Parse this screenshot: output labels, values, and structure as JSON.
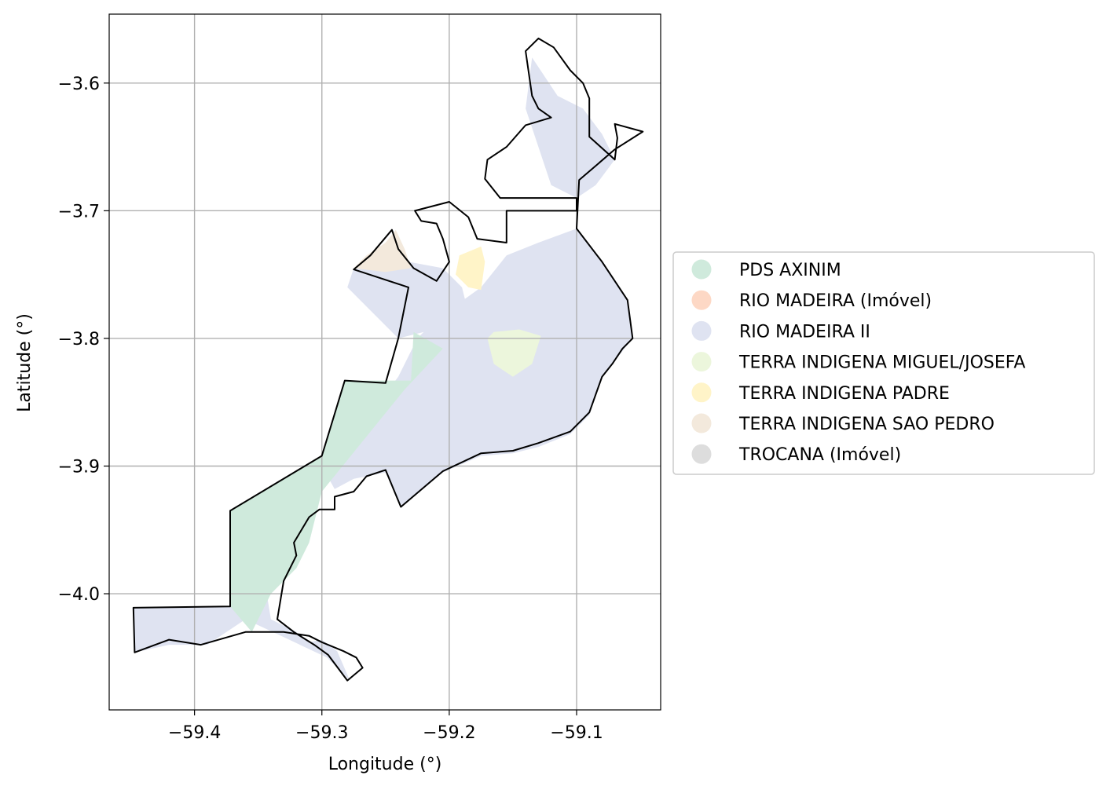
{
  "chart_data": {
    "type": "map",
    "xlabel": "Longitude (°)",
    "ylabel": "Latitude (°)",
    "xlim": [
      -59.467,
      -59.034
    ],
    "ylim": [
      -4.091,
      -3.546
    ],
    "xticks": [
      -59.4,
      -59.3,
      -59.2,
      -59.1
    ],
    "yticks": [
      -3.6,
      -3.7,
      -3.8,
      -3.9,
      -4.0
    ],
    "xtick_labels": [
      "−59.4",
      "−59.3",
      "−59.2",
      "−59.1"
    ],
    "ytick_labels": [
      "−3.6",
      "−3.7",
      "−3.8",
      "−3.9",
      "−4.0"
    ],
    "grid": true,
    "legend_position": "right",
    "legend": [
      {
        "label": "PDS AXINIM",
        "color": "#cfeadc"
      },
      {
        "label": "RIO MADEIRA (Imóvel)",
        "color": "#fdd8c5"
      },
      {
        "label": "RIO MADEIRA II",
        "color": "#dfe3f1"
      },
      {
        "label": "TERRA INDIGENA MIGUEL/JOSEFA",
        "color": "#ecf6dc"
      },
      {
        "label": "TERRA INDIGENA PADRE",
        "color": "#fff4c8"
      },
      {
        "label": "TERRA INDIGENA SAO PEDRO",
        "color": "#f3e9dc"
      },
      {
        "label": "TROCANA (Imóvel)",
        "color": "#dddddd"
      }
    ],
    "regions": [
      {
        "name": "RIO MADEIRA II",
        "color": "#dfe3f1",
        "coords": [
          [
            -59.448,
            -4.011
          ],
          [
            -59.372,
            -4.01
          ],
          [
            -59.372,
            -3.99
          ],
          [
            -59.345,
            -3.99
          ],
          [
            -59.34,
            -4.02
          ],
          [
            -59.32,
            -4.03
          ],
          [
            -59.31,
            -4.038
          ],
          [
            -59.3,
            -4.036
          ],
          [
            -59.288,
            -4.045
          ],
          [
            -59.278,
            -4.068
          ],
          [
            -59.296,
            -4.05
          ],
          [
            -59.33,
            -4.034
          ],
          [
            -59.36,
            -4.02
          ],
          [
            -59.39,
            -4.04
          ],
          [
            -59.42,
            -4.04
          ],
          [
            -59.447,
            -4.046
          ]
        ]
      },
      {
        "name": "RIO MADEIRA II",
        "color": "#dfe3f1",
        "coords": [
          [
            -59.3,
            -3.9
          ],
          [
            -59.27,
            -3.87
          ],
          [
            -59.24,
            -3.83
          ],
          [
            -59.225,
            -3.8
          ],
          [
            -59.21,
            -3.785
          ],
          [
            -59.175,
            -3.76
          ],
          [
            -59.155,
            -3.735
          ],
          [
            -59.13,
            -3.725
          ],
          [
            -59.1,
            -3.714
          ],
          [
            -59.08,
            -3.74
          ],
          [
            -59.06,
            -3.77
          ],
          [
            -59.056,
            -3.8
          ],
          [
            -59.064,
            -3.81
          ],
          [
            -59.072,
            -3.82
          ],
          [
            -59.08,
            -3.83
          ],
          [
            -59.09,
            -3.86
          ],
          [
            -59.105,
            -3.875
          ],
          [
            -59.13,
            -3.885
          ],
          [
            -59.15,
            -3.89
          ],
          [
            -59.175,
            -3.892
          ],
          [
            -59.205,
            -3.905
          ],
          [
            -59.238,
            -3.932
          ],
          [
            -59.25,
            -3.905
          ],
          [
            -59.275,
            -3.91
          ],
          [
            -59.29,
            -3.918
          ]
        ]
      },
      {
        "name": "RIO MADEIRA II",
        "color": "#dfe3f1",
        "coords": [
          [
            -59.275,
            -3.745
          ],
          [
            -59.232,
            -3.74
          ],
          [
            -59.205,
            -3.745
          ],
          [
            -59.19,
            -3.76
          ],
          [
            -59.185,
            -3.78
          ],
          [
            -59.2,
            -3.79
          ],
          [
            -59.24,
            -3.8
          ],
          [
            -59.28,
            -3.76
          ]
        ]
      },
      {
        "name": "RIO MADEIRA II",
        "color": "#dfe3f1",
        "coords": [
          [
            -59.135,
            -3.58
          ],
          [
            -59.115,
            -3.61
          ],
          [
            -59.095,
            -3.62
          ],
          [
            -59.08,
            -3.64
          ],
          [
            -59.07,
            -3.66
          ],
          [
            -59.085,
            -3.68
          ],
          [
            -59.1,
            -3.69
          ],
          [
            -59.12,
            -3.68
          ],
          [
            -59.13,
            -3.65
          ],
          [
            -59.14,
            -3.62
          ]
        ]
      },
      {
        "name": "PDS AXINIM",
        "color": "#cfeadc",
        "coords": [
          [
            -59.372,
            -3.935
          ],
          [
            -59.3,
            -3.892
          ],
          [
            -59.282,
            -3.833
          ],
          [
            -59.23,
            -3.833
          ],
          [
            -59.228,
            -3.795
          ],
          [
            -59.205,
            -3.808
          ],
          [
            -59.235,
            -3.84
          ],
          [
            -59.3,
            -3.92
          ],
          [
            -59.31,
            -3.96
          ],
          [
            -59.32,
            -3.98
          ],
          [
            -59.34,
            -4.0
          ],
          [
            -59.355,
            -4.03
          ],
          [
            -59.372,
            -4.01
          ]
        ]
      },
      {
        "name": "TERRA INDIGENA SAO PEDRO",
        "color": "#f3e9dc",
        "coords": [
          [
            -59.275,
            -3.745
          ],
          [
            -59.265,
            -3.735
          ],
          [
            -59.25,
            -3.725
          ],
          [
            -59.242,
            -3.715
          ],
          [
            -59.235,
            -3.73
          ],
          [
            -59.23,
            -3.745
          ],
          [
            -59.25,
            -3.748
          ]
        ]
      },
      {
        "name": "TERRA INDIGENA PADRE",
        "color": "#fff4c8",
        "coords": [
          [
            -59.192,
            -3.735
          ],
          [
            -59.175,
            -3.728
          ],
          [
            -59.172,
            -3.74
          ],
          [
            -59.175,
            -3.762
          ],
          [
            -59.185,
            -3.76
          ],
          [
            -59.195,
            -3.75
          ]
        ]
      },
      {
        "name": "TERRA INDIGENA MIGUEL/JOSEFA",
        "color": "#ecf6dc",
        "coords": [
          [
            -59.165,
            -3.795
          ],
          [
            -59.145,
            -3.793
          ],
          [
            -59.128,
            -3.798
          ],
          [
            -59.135,
            -3.82
          ],
          [
            -59.15,
            -3.83
          ],
          [
            -59.165,
            -3.82
          ],
          [
            -59.17,
            -3.8
          ]
        ]
      }
    ],
    "outline": [
      [
        -59.448,
        -4.011
      ],
      [
        -59.372,
        -4.01
      ],
      [
        -59.372,
        -3.935
      ],
      [
        -59.3,
        -3.892
      ],
      [
        -59.282,
        -3.833
      ],
      [
        -59.25,
        -3.835
      ],
      [
        -59.24,
        -3.8
      ],
      [
        -59.232,
        -3.76
      ],
      [
        -59.275,
        -3.746
      ],
      [
        -59.262,
        -3.735
      ],
      [
        -59.245,
        -3.715
      ],
      [
        -59.24,
        -3.73
      ],
      [
        -59.228,
        -3.745
      ],
      [
        -59.21,
        -3.755
      ],
      [
        -59.2,
        -3.74
      ],
      [
        -59.205,
        -3.722
      ],
      [
        -59.21,
        -3.71
      ],
      [
        -59.222,
        -3.708
      ],
      [
        -59.227,
        -3.7
      ],
      [
        -59.2,
        -3.693
      ],
      [
        -59.185,
        -3.705
      ],
      [
        -59.178,
        -3.722
      ],
      [
        -59.155,
        -3.725
      ],
      [
        -59.155,
        -3.7
      ],
      [
        -59.13,
        -3.7
      ],
      [
        -59.1,
        -3.7
      ],
      [
        -59.1,
        -3.69
      ],
      [
        -59.14,
        -3.69
      ],
      [
        -59.16,
        -3.69
      ],
      [
        -59.172,
        -3.675
      ],
      [
        -59.17,
        -3.66
      ],
      [
        -59.155,
        -3.65
      ],
      [
        -59.14,
        -3.633
      ],
      [
        -59.12,
        -3.627
      ],
      [
        -59.13,
        -3.62
      ],
      [
        -59.135,
        -3.61
      ],
      [
        -59.14,
        -3.575
      ],
      [
        -59.13,
        -3.565
      ],
      [
        -59.118,
        -3.572
      ],
      [
        -59.105,
        -3.59
      ],
      [
        -59.095,
        -3.6
      ],
      [
        -59.09,
        -3.612
      ],
      [
        -59.09,
        -3.642
      ],
      [
        -59.07,
        -3.66
      ],
      [
        -59.068,
        -3.643
      ],
      [
        -59.07,
        -3.632
      ],
      [
        -59.048,
        -3.638
      ],
      [
        -59.07,
        -3.652
      ],
      [
        -59.098,
        -3.676
      ],
      [
        -59.1,
        -3.714
      ],
      [
        -59.08,
        -3.74
      ],
      [
        -59.06,
        -3.77
      ],
      [
        -59.056,
        -3.8
      ],
      [
        -59.064,
        -3.808
      ],
      [
        -59.072,
        -3.82
      ],
      [
        -59.08,
        -3.83
      ],
      [
        -59.09,
        -3.858
      ],
      [
        -59.105,
        -3.873
      ],
      [
        -59.13,
        -3.882
      ],
      [
        -59.15,
        -3.888
      ],
      [
        -59.175,
        -3.89
      ],
      [
        -59.205,
        -3.904
      ],
      [
        -59.238,
        -3.932
      ],
      [
        -59.25,
        -3.903
      ],
      [
        -59.265,
        -3.908
      ],
      [
        -59.275,
        -3.92
      ],
      [
        -59.29,
        -3.924
      ],
      [
        -59.29,
        -3.934
      ],
      [
        -59.302,
        -3.934
      ],
      [
        -59.31,
        -3.94
      ],
      [
        -59.322,
        -3.96
      ],
      [
        -59.32,
        -3.97
      ],
      [
        -59.33,
        -3.99
      ],
      [
        -59.335,
        -4.02
      ],
      [
        -59.322,
        -4.03
      ],
      [
        -59.306,
        -4.04
      ],
      [
        -59.295,
        -4.048
      ],
      [
        -59.28,
        -4.068
      ],
      [
        -59.268,
        -4.058
      ],
      [
        -59.273,
        -4.05
      ],
      [
        -59.283,
        -4.045
      ],
      [
        -59.3,
        -4.038
      ],
      [
        -59.31,
        -4.033
      ],
      [
        -59.33,
        -4.03
      ],
      [
        -59.36,
        -4.03
      ],
      [
        -59.395,
        -4.04
      ],
      [
        -59.42,
        -4.036
      ],
      [
        -59.447,
        -4.046
      ]
    ]
  }
}
